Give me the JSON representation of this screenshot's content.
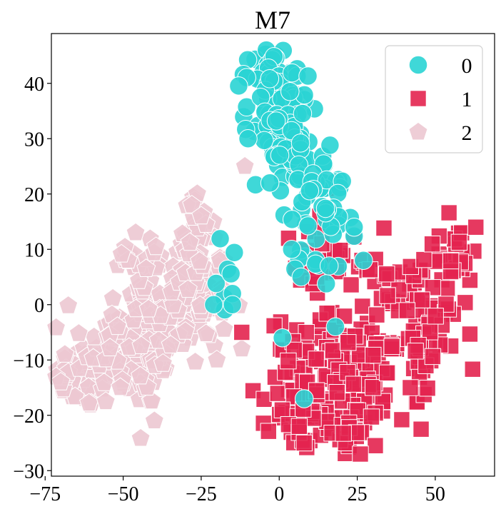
{
  "chart_data": {
    "type": "scatter",
    "title": "M7",
    "xlabel": "",
    "ylabel": "",
    "xlim": [
      -73,
      69
    ],
    "ylim": [
      -31,
      49
    ],
    "xticks": [
      -75,
      -50,
      -25,
      0,
      25,
      50
    ],
    "xtick_labels": [
      "−75",
      "−50",
      "−25",
      "0",
      "25",
      "50"
    ],
    "yticks": [
      -30,
      -20,
      -10,
      0,
      10,
      20,
      30,
      40
    ],
    "ytick_labels": [
      "−30",
      "−20",
      "−10",
      "0",
      "10",
      "20",
      "30",
      "40"
    ],
    "grid": false,
    "legend_position": "top-right",
    "series": [
      {
        "name": "0",
        "marker": "circle",
        "color": "#2ad4d4",
        "clusters": [
          {
            "cx": -3,
            "cy": 43,
            "sx": 3,
            "sy": 2,
            "n": 24
          },
          {
            "cx": -1,
            "cy": 35,
            "sx": 5,
            "sy": 4,
            "n": 60
          },
          {
            "cx": 3,
            "cy": 28,
            "sx": 6,
            "sy": 3,
            "n": 45
          },
          {
            "cx": 12,
            "cy": 22,
            "sx": 5,
            "sy": 3,
            "n": 35
          },
          {
            "cx": 15,
            "cy": 14,
            "sx": 4,
            "sy": 2.5,
            "n": 14
          },
          {
            "cx": 10,
            "cy": 7,
            "sx": 4,
            "sy": 2,
            "n": 9
          },
          {
            "cx": -17,
            "cy": 6,
            "sx": 1.5,
            "sy": 5,
            "n": 7
          }
        ],
        "points": [
          [
            4,
            10
          ],
          [
            7,
            5
          ],
          [
            16,
            7
          ],
          [
            -15,
            2
          ],
          [
            -15,
            0
          ],
          [
            -21,
            0
          ],
          [
            18,
            -4
          ],
          [
            8,
            -17
          ],
          [
            1,
            -6
          ],
          [
            24,
            14
          ],
          [
            -10,
            30
          ],
          [
            -3,
            22
          ],
          [
            27,
            8
          ]
        ]
      },
      {
        "name": "1",
        "marker": "square",
        "color": "#e3234f",
        "clusters": [
          {
            "cx": 20,
            "cy": 8,
            "sx": 7,
            "sy": 3,
            "n": 30
          },
          {
            "cx": 38,
            "cy": 2,
            "sx": 6,
            "sy": 3,
            "n": 30
          },
          {
            "cx": 55,
            "cy": 9,
            "sx": 5,
            "sy": 3,
            "n": 25
          },
          {
            "cx": 48,
            "cy": -6,
            "sx": 5,
            "sy": 5,
            "n": 30
          },
          {
            "cx": 22,
            "cy": -12,
            "sx": 13,
            "sy": 5,
            "n": 140
          },
          {
            "cx": 8,
            "cy": -20,
            "sx": 5,
            "sy": 3,
            "n": 30
          },
          {
            "cx": 25,
            "cy": -23,
            "sx": 4,
            "sy": 2.5,
            "n": 18
          }
        ],
        "points": [
          [
            15,
            21
          ],
          [
            13,
            16
          ],
          [
            -12,
            -5
          ],
          [
            3,
            12
          ],
          [
            12,
            5
          ],
          [
            26,
            -27
          ],
          [
            63,
            14
          ],
          [
            8,
            -25
          ],
          [
            42,
            -15
          ]
        ]
      },
      {
        "name": "2",
        "marker": "pentagon",
        "color": "#ecc8d2",
        "clusters": [
          {
            "cx": -62,
            "cy": -13,
            "sx": 5,
            "sy": 3,
            "n": 55
          },
          {
            "cx": -47,
            "cy": -7,
            "sx": 8,
            "sy": 6,
            "n": 110
          },
          {
            "cx": -32,
            "cy": 1,
            "sx": 8,
            "sy": 6,
            "n": 110
          },
          {
            "cx": -43,
            "cy": 9,
            "sx": 3,
            "sy": 3,
            "n": 15
          },
          {
            "cx": -27,
            "cy": 12,
            "sx": 3,
            "sy": 4,
            "n": 28
          }
        ],
        "points": [
          [
            -70,
            -14
          ],
          [
            -40,
            -21
          ],
          [
            -28,
            18
          ],
          [
            -25,
            16
          ],
          [
            -11,
            25
          ],
          [
            -20,
            -10
          ],
          [
            -12,
            -8
          ],
          [
            -46,
            13
          ],
          [
            -19,
            8
          ]
        ]
      }
    ]
  },
  "legend": {
    "items": [
      {
        "label": "0",
        "marker": "circle",
        "color": "#2ad4d4"
      },
      {
        "label": "1",
        "marker": "square",
        "color": "#e3234f"
      },
      {
        "label": "2",
        "marker": "pentagon",
        "color": "#ecc8d2"
      }
    ]
  }
}
